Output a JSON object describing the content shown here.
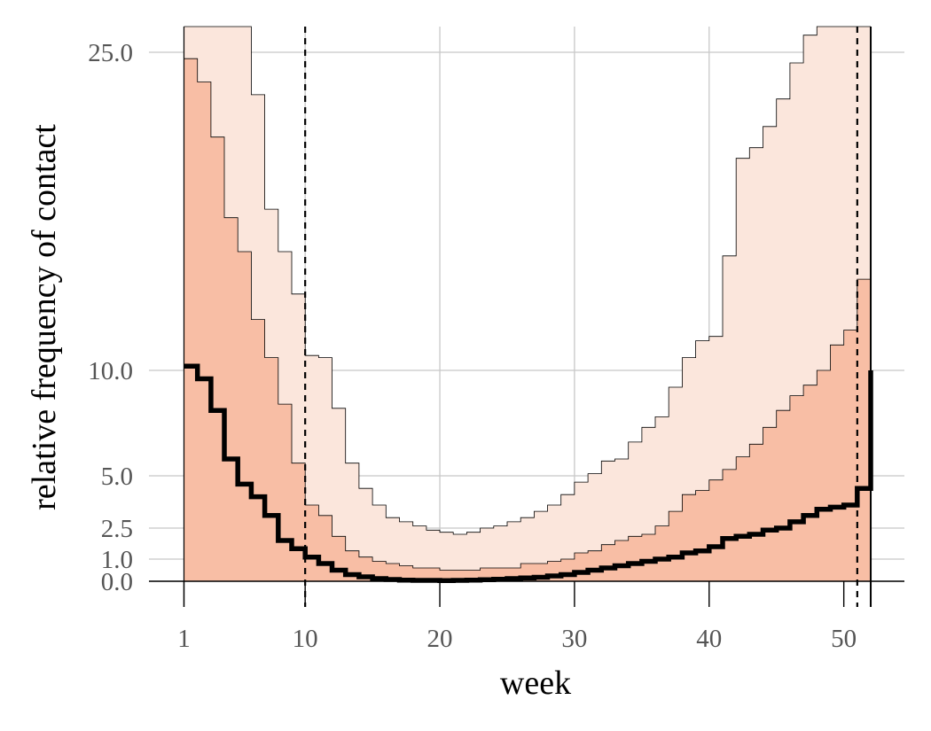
{
  "chart_data": {
    "type": "area",
    "xlabel": "week",
    "ylabel": "relative frequency of contact",
    "xlim": [
      -1.6,
      54.5
    ],
    "ylim": [
      -0.3,
      26.5
    ],
    "x_ticks": [
      1,
      10,
      20,
      30,
      40,
      50
    ],
    "x_tick_labels": [
      "1",
      "10",
      "20",
      "30",
      "40",
      "50"
    ],
    "y_ticks": [
      0.0,
      1.0,
      2.5,
      5.0,
      10.0,
      25.0
    ],
    "y_tick_labels": [
      "0.0",
      "1.0",
      "2.5",
      "5.0",
      "10.0",
      "25.0"
    ],
    "grid": true,
    "step_x": [
      1,
      2,
      3,
      4,
      5,
      6,
      7,
      8,
      9,
      10,
      11,
      12,
      13,
      14,
      15,
      16,
      17,
      18,
      19,
      20,
      21,
      22,
      23,
      24,
      25,
      26,
      27,
      28,
      29,
      30,
      31,
      32,
      33,
      34,
      35,
      36,
      37,
      38,
      39,
      40,
      41,
      42,
      43,
      44,
      45,
      46,
      47,
      48,
      49,
      50,
      51,
      52
    ],
    "vertical_lines": [
      {
        "x": 10,
        "style": "dashed"
      },
      {
        "x": 51,
        "style": "dashed"
      },
      {
        "x": 52,
        "style": "solid"
      }
    ],
    "series": [
      {
        "role": "outer-band",
        "color": "#fbe6dc",
        "upper": [
          26.5,
          26.5,
          26.5,
          26.5,
          26.5,
          23.0,
          17.6,
          15.6,
          13.6,
          10.7,
          10.6,
          8.2,
          5.6,
          4.4,
          3.6,
          3.0,
          2.8,
          2.6,
          2.4,
          2.3,
          2.2,
          2.3,
          2.5,
          2.6,
          2.8,
          3.0,
          3.3,
          3.6,
          4.1,
          4.7,
          5.1,
          5.7,
          5.8,
          6.6,
          7.3,
          7.8,
          9.2,
          10.6,
          11.4,
          11.6,
          15.4,
          20.0,
          20.5,
          21.5,
          22.8,
          24.5,
          26.0,
          26.5,
          26.5,
          26.5,
          26.5,
          26.5
        ],
        "lower": [
          0,
          0,
          0,
          0,
          0,
          0,
          0,
          0,
          0,
          0,
          0,
          0,
          0,
          0,
          0,
          0,
          0,
          0,
          0,
          0,
          0,
          0,
          0,
          0,
          0,
          0,
          0,
          0,
          0,
          0,
          0,
          0,
          0,
          0,
          0,
          0,
          0,
          0,
          0,
          0,
          0,
          0,
          0,
          0,
          0,
          0,
          0,
          0,
          0,
          0,
          0,
          0
        ]
      },
      {
        "role": "inner-band",
        "color": "#f8bea5",
        "upper": [
          24.7,
          23.6,
          21.0,
          17.2,
          15.6,
          12.4,
          10.6,
          8.4,
          5.6,
          3.6,
          3.1,
          2.1,
          1.4,
          1.1,
          0.9,
          0.8,
          0.7,
          0.6,
          0.6,
          0.5,
          0.5,
          0.5,
          0.6,
          0.6,
          0.6,
          0.8,
          0.8,
          0.9,
          1.0,
          1.3,
          1.4,
          1.7,
          1.9,
          2.1,
          2.2,
          2.6,
          3.3,
          4.1,
          4.3,
          4.8,
          5.3,
          5.9,
          6.5,
          7.3,
          8.1,
          8.8,
          9.3,
          10.0,
          11.2,
          11.9,
          14.3,
          17.0
        ],
        "lower": [
          0,
          0,
          0,
          0,
          0,
          0,
          0,
          0,
          0,
          0,
          0,
          0,
          0,
          0,
          0,
          0,
          0,
          0,
          0,
          0,
          0,
          0,
          0,
          0,
          0,
          0,
          0,
          0,
          0,
          0,
          0,
          0,
          0,
          0,
          0,
          0,
          0,
          0,
          0,
          0,
          0,
          0,
          0,
          0,
          0,
          0,
          0,
          0,
          0,
          0,
          0,
          0
        ]
      },
      {
        "role": "estimate",
        "color": "#000000",
        "values": [
          10.2,
          9.6,
          8.1,
          5.8,
          4.6,
          4.0,
          3.1,
          1.9,
          1.5,
          1.1,
          0.8,
          0.5,
          0.3,
          0.2,
          0.12,
          0.08,
          0.05,
          0.04,
          0.04,
          0.03,
          0.04,
          0.05,
          0.07,
          0.09,
          0.12,
          0.15,
          0.18,
          0.24,
          0.3,
          0.4,
          0.5,
          0.6,
          0.7,
          0.8,
          0.9,
          1.0,
          1.1,
          1.3,
          1.4,
          1.6,
          2.0,
          2.1,
          2.2,
          2.4,
          2.5,
          2.8,
          3.1,
          3.4,
          3.5,
          3.6,
          4.4,
          5.5
        ],
        "end_value": 10.0
      }
    ]
  }
}
